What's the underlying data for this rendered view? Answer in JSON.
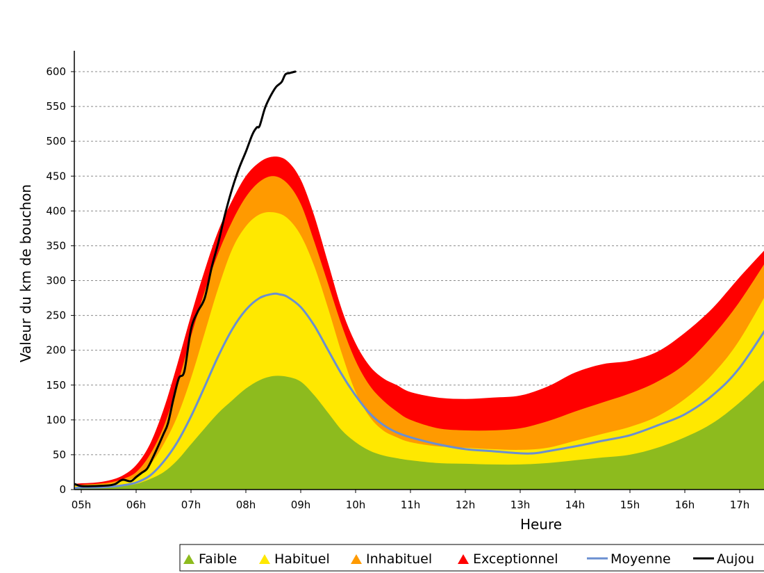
{
  "chart_data": {
    "type": "area",
    "xlabel": "Heure",
    "ylabel": "Valeur du  km de bouchon",
    "ylim": [
      0,
      600
    ],
    "xlim": [
      4.88,
      17.62
    ],
    "x_ticks": [
      {
        "value": 5,
        "label": "05h"
      },
      {
        "value": 6,
        "label": "06h"
      },
      {
        "value": 7,
        "label": "07h"
      },
      {
        "value": 8,
        "label": "08h"
      },
      {
        "value": 9,
        "label": "09h"
      },
      {
        "value": 10,
        "label": "10h"
      },
      {
        "value": 11,
        "label": "11h"
      },
      {
        "value": 12,
        "label": "12h"
      },
      {
        "value": 13,
        "label": "13h"
      },
      {
        "value": 14,
        "label": "14h"
      },
      {
        "value": 15,
        "label": "15h"
      },
      {
        "value": 16,
        "label": "16h"
      },
      {
        "value": 17,
        "label": "17h"
      }
    ],
    "y_ticks": [
      {
        "value": 0,
        "label": "0"
      },
      {
        "value": 50,
        "label": "50"
      },
      {
        "value": 100,
        "label": "100"
      },
      {
        "value": 150,
        "label": "150"
      },
      {
        "value": 200,
        "label": "200"
      },
      {
        "value": 250,
        "label": "250"
      },
      {
        "value": 300,
        "label": "300"
      },
      {
        "value": 350,
        "label": "350"
      },
      {
        "value": 400,
        "label": "400"
      },
      {
        "value": 450,
        "label": "450"
      },
      {
        "value": 500,
        "label": "500"
      },
      {
        "value": 550,
        "label": "550"
      },
      {
        "value": 600,
        "label": "600"
      }
    ],
    "grid": "horizontal dashed",
    "legend_position": "bottom",
    "x": [
      4.88,
      5.0,
      5.25,
      5.5,
      5.75,
      6.0,
      6.25,
      6.5,
      6.75,
      7.0,
      7.25,
      7.5,
      7.75,
      8.0,
      8.25,
      8.5,
      8.75,
      9.0,
      9.25,
      9.5,
      9.75,
      10.0,
      10.25,
      10.5,
      10.75,
      11.0,
      11.5,
      12.0,
      12.5,
      13.0,
      13.5,
      14.0,
      14.5,
      15.0,
      15.5,
      16.0,
      16.5,
      17.0,
      17.62
    ],
    "bands": [
      {
        "name": "Faible",
        "color": "#8dbb1e",
        "values": [
          2,
          2,
          2,
          3,
          5,
          8,
          15,
          25,
          42,
          65,
          88,
          110,
          128,
          145,
          157,
          163,
          162,
          155,
          135,
          110,
          85,
          68,
          56,
          49,
          45,
          42,
          38,
          37,
          36,
          36,
          38,
          42,
          46,
          50,
          60,
          75,
          95,
          125,
          170
        ]
      },
      {
        "name": "Habituel",
        "color": "#ffe800",
        "values": [
          5,
          6,
          7,
          8,
          12,
          18,
          35,
          65,
          105,
          160,
          225,
          290,
          345,
          378,
          395,
          398,
          390,
          365,
          320,
          260,
          195,
          140,
          105,
          85,
          75,
          68,
          62,
          60,
          58,
          57,
          60,
          70,
          80,
          90,
          105,
          130,
          165,
          215,
          300
        ]
      },
      {
        "name": "Inhabituel",
        "color": "#ff9a00",
        "values": [
          6,
          7,
          8,
          10,
          15,
          25,
          50,
          90,
          150,
          220,
          285,
          340,
          385,
          420,
          442,
          450,
          440,
          410,
          355,
          295,
          235,
          185,
          150,
          128,
          112,
          100,
          88,
          85,
          85,
          88,
          98,
          112,
          125,
          138,
          155,
          180,
          220,
          270,
          345
        ]
      },
      {
        "name": "Exceptionnel",
        "color": "#ff0000",
        "values": [
          8,
          9,
          10,
          13,
          20,
          35,
          65,
          115,
          180,
          250,
          315,
          372,
          415,
          450,
          470,
          478,
          472,
          445,
          392,
          325,
          258,
          210,
          178,
          160,
          150,
          140,
          132,
          130,
          132,
          135,
          148,
          168,
          180,
          185,
          198,
          225,
          260,
          305,
          358
        ]
      }
    ],
    "series": [
      {
        "name": "Moyenne",
        "color": "#6a8fd1",
        "x": [
          4.88,
          5.0,
          5.25,
          5.5,
          5.75,
          6.0,
          6.25,
          6.5,
          6.75,
          7.0,
          7.25,
          7.5,
          7.75,
          8.0,
          8.25,
          8.5,
          8.625,
          8.75,
          9.0,
          9.25,
          9.5,
          9.75,
          10.0,
          10.25,
          10.5,
          10.75,
          11.0,
          11.5,
          12.0,
          12.5,
          13.0,
          13.25,
          13.5,
          14.0,
          14.5,
          15.0,
          15.5,
          16.0,
          16.5,
          17.0,
          17.62
        ],
        "values": [
          2,
          3,
          3,
          4,
          6,
          10,
          20,
          40,
          68,
          105,
          148,
          192,
          230,
          258,
          275,
          281,
          280,
          277,
          262,
          235,
          200,
          165,
          135,
          110,
          93,
          82,
          75,
          65,
          58,
          55,
          52,
          52,
          55,
          62,
          70,
          78,
          92,
          108,
          135,
          175,
          248
        ]
      },
      {
        "name": "Aujou",
        "color": "#000000",
        "x": [
          4.88,
          5.0,
          5.25,
          5.5,
          5.62,
          5.75,
          5.9,
          6.0,
          6.1,
          6.2,
          6.3,
          6.4,
          6.5,
          6.58,
          6.68,
          6.78,
          6.88,
          7.0,
          7.12,
          7.25,
          7.38,
          7.5,
          7.62,
          7.75,
          7.88,
          8.0,
          8.12,
          8.2,
          8.25,
          8.35,
          8.45,
          8.55,
          8.65,
          8.72,
          8.8,
          8.9
        ],
        "values": [
          8,
          5,
          5,
          6,
          8,
          14,
          12,
          18,
          24,
          30,
          45,
          62,
          80,
          95,
          130,
          160,
          170,
          230,
          255,
          275,
          320,
          355,
          395,
          432,
          462,
          485,
          510,
          520,
          522,
          548,
          565,
          578,
          585,
          596,
          598,
          600
        ]
      }
    ],
    "legend": [
      {
        "label": "Faible",
        "marker": "triangle",
        "color": "#8dbb1e"
      },
      {
        "label": "Habituel",
        "marker": "triangle",
        "color": "#ffe800"
      },
      {
        "label": "Inhabituel",
        "marker": "triangle",
        "color": "#ff9a00"
      },
      {
        "label": "Exceptionnel",
        "marker": "triangle",
        "color": "#ff0000"
      },
      {
        "label": "Moyenne",
        "marker": "line",
        "color": "#6a8fd1"
      },
      {
        "label": "Aujou",
        "marker": "line",
        "color": "#000000"
      }
    ]
  }
}
